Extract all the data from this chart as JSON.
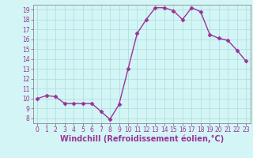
{
  "x": [
    0,
    1,
    2,
    3,
    4,
    5,
    6,
    7,
    8,
    9,
    10,
    11,
    12,
    13,
    14,
    15,
    16,
    17,
    18,
    19,
    20,
    21,
    22,
    23
  ],
  "y": [
    10,
    10.3,
    10.2,
    9.5,
    9.5,
    9.5,
    9.5,
    8.7,
    7.9,
    9.4,
    13.0,
    16.6,
    18.0,
    19.2,
    19.2,
    18.9,
    18.0,
    19.2,
    18.8,
    16.5,
    16.1,
    15.9,
    14.9,
    13.8
  ],
  "line_color": "#993399",
  "marker": "D",
  "markersize": 2.5,
  "linewidth": 1.0,
  "xlabel": "Windchill (Refroidissement éolien,°C)",
  "xlabel_fontsize": 7,
  "background_color": "#d4f5f5",
  "grid_color": "#b0e0e0",
  "ylim": [
    7.5,
    19.5
  ],
  "xlim": [
    -0.5,
    23.5
  ],
  "yticks": [
    8,
    9,
    10,
    11,
    12,
    13,
    14,
    15,
    16,
    17,
    18,
    19
  ],
  "xticks": [
    0,
    1,
    2,
    3,
    4,
    5,
    6,
    7,
    8,
    9,
    10,
    11,
    12,
    13,
    14,
    15,
    16,
    17,
    18,
    19,
    20,
    21,
    22,
    23
  ],
  "tick_fontsize": 5.5,
  "spine_color": "#888888"
}
